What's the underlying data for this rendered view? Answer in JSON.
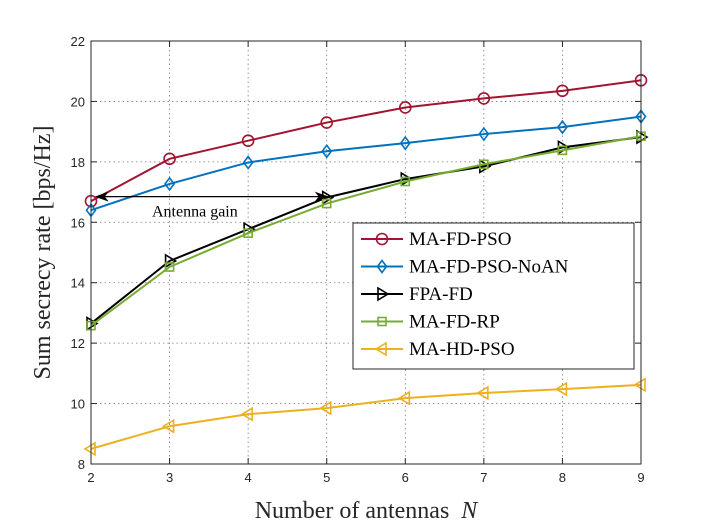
{
  "chart_data": {
    "type": "line",
    "title": "",
    "xlabel": "Number of antennas",
    "xlabel_var": "N",
    "ylabel": "Sum secrecy rate [bps/Hz]",
    "x": [
      2,
      3,
      4,
      5,
      6,
      7,
      8,
      9
    ],
    "xlim": [
      2,
      9
    ],
    "ylim": [
      8,
      22
    ],
    "xticks": [
      "2",
      "3",
      "4",
      "5",
      "6",
      "7",
      "8",
      "9"
    ],
    "yticks": [
      "8",
      "10",
      "12",
      "14",
      "16",
      "18",
      "20",
      "22"
    ],
    "grid": true,
    "legend_position": "center-right",
    "series": [
      {
        "name": "MA-FD-PSO",
        "marker": "circle",
        "color": "#A2142F",
        "values": [
          16.7,
          18.1,
          18.7,
          19.3,
          19.8,
          20.1,
          20.35,
          20.7
        ]
      },
      {
        "name": "MA-FD-PSO-NoAN",
        "marker": "diamond",
        "color": "#0072BD",
        "values": [
          16.4,
          17.27,
          17.98,
          18.35,
          18.62,
          18.92,
          19.15,
          19.5
        ]
      },
      {
        "name": "FPA-FD",
        "marker": "triangle-right",
        "color": "#000000",
        "values": [
          12.65,
          14.72,
          15.77,
          16.82,
          17.43,
          17.85,
          18.48,
          18.82
        ]
      },
      {
        "name": "MA-FD-RP",
        "marker": "square",
        "color": "#77AC30",
        "values": [
          12.58,
          14.52,
          15.64,
          16.62,
          17.35,
          17.92,
          18.38,
          18.85
        ]
      },
      {
        "name": "MA-HD-PSO",
        "marker": "triangle-left",
        "color": "#EDB120",
        "values": [
          8.5,
          9.25,
          9.65,
          9.85,
          10.18,
          10.35,
          10.48,
          10.62
        ]
      }
    ],
    "annotations": [
      {
        "text": "Antenna gain",
        "arrow_from": [
          2.2,
          16.85
        ],
        "arrow_to": [
          5.0,
          16.85
        ]
      }
    ]
  }
}
